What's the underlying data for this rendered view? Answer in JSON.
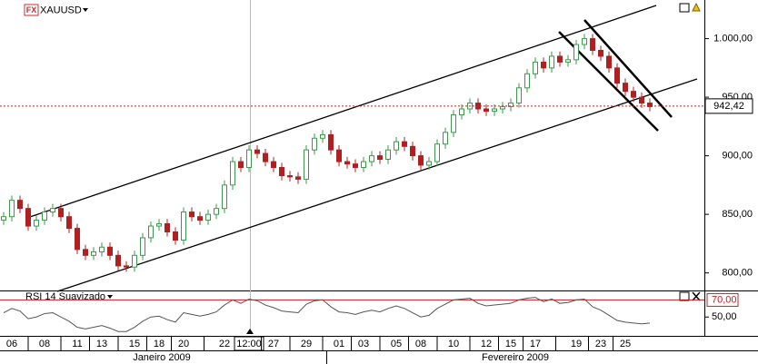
{
  "chart_data": [
    {
      "type": "candlestick",
      "badge": "FX",
      "title": "XAUUSD",
      "up_color": "#3a9a4a",
      "down_color": "#b02020",
      "categories": [
        null,
        "06",
        null,
        null,
        null,
        "08",
        null,
        null,
        null,
        "11",
        null,
        null,
        "13",
        null,
        null,
        null,
        "15",
        null,
        null,
        "18",
        null,
        null,
        "20",
        null,
        null,
        null,
        null,
        "22",
        null,
        null,
        "12:00",
        null,
        null,
        "27",
        null,
        null,
        null,
        "29",
        null,
        null,
        null,
        "01",
        null,
        null,
        "03",
        null,
        null,
        null,
        "05",
        null,
        null,
        "08",
        null,
        null,
        null,
        "10",
        null,
        null,
        null,
        "12",
        null,
        null,
        "15",
        null,
        null,
        "17",
        null,
        null,
        null,
        null,
        "19",
        null,
        null,
        "23",
        null,
        null,
        "25",
        null,
        null,
        null
      ],
      "x_groups": [
        "Janeiro 2009",
        "Fevereiro 2009"
      ],
      "open": [
        845,
        848,
        862,
        855,
        840,
        845,
        852,
        855,
        848,
        838,
        820,
        815,
        818,
        822,
        815,
        806,
        805,
        815,
        830,
        840,
        842,
        835,
        828,
        852,
        848,
        845,
        850,
        855,
        875,
        895,
        890,
        905,
        902,
        895,
        890,
        883,
        882,
        880,
        905,
        915,
        918,
        905,
        895,
        893,
        890,
        895,
        900,
        897,
        905,
        912,
        908,
        900,
        892,
        895,
        910,
        920,
        935,
        940,
        945,
        940,
        938,
        940,
        942,
        945,
        958,
        970,
        980,
        975,
        985,
        980,
        982,
        995,
        1000,
        990,
        985,
        975,
        962,
        955,
        950,
        945
      ],
      "high": [
        852,
        866,
        866,
        859,
        849,
        856,
        859,
        859,
        852,
        842,
        824,
        822,
        826,
        826,
        819,
        810,
        819,
        834,
        844,
        846,
        846,
        839,
        856,
        856,
        852,
        854,
        859,
        879,
        899,
        899,
        909,
        909,
        906,
        899,
        894,
        887,
        886,
        909,
        919,
        922,
        922,
        909,
        899,
        897,
        899,
        904,
        904,
        909,
        916,
        916,
        912,
        904,
        899,
        914,
        924,
        939,
        944,
        949,
        949,
        944,
        944,
        946,
        949,
        962,
        974,
        984,
        984,
        989,
        989,
        986,
        999,
        1004,
        1004,
        994,
        989,
        979,
        966,
        959,
        954,
        949
      ],
      "low": [
        841,
        844,
        851,
        836,
        836,
        841,
        848,
        844,
        834,
        816,
        811,
        811,
        814,
        811,
        802,
        801,
        801,
        811,
        826,
        836,
        831,
        824,
        824,
        844,
        841,
        841,
        846,
        851,
        871,
        886,
        886,
        898,
        891,
        886,
        879,
        878,
        876,
        876,
        901,
        911,
        901,
        891,
        889,
        886,
        886,
        891,
        893,
        893,
        901,
        904,
        896,
        888,
        888,
        891,
        906,
        916,
        931,
        936,
        936,
        934,
        934,
        936,
        938,
        941,
        954,
        966,
        971,
        971,
        976,
        976,
        978,
        991,
        986,
        981,
        971,
        958,
        951,
        946,
        941,
        938
      ],
      "close": [
        848,
        862,
        855,
        840,
        845,
        852,
        855,
        848,
        838,
        820,
        815,
        818,
        822,
        815,
        806,
        805,
        815,
        830,
        840,
        842,
        835,
        828,
        852,
        848,
        845,
        850,
        855,
        875,
        895,
        890,
        905,
        902,
        895,
        890,
        883,
        882,
        880,
        905,
        915,
        918,
        905,
        895,
        893,
        890,
        895,
        900,
        897,
        905,
        912,
        908,
        900,
        892,
        895,
        910,
        920,
        935,
        940,
        945,
        940,
        938,
        940,
        942,
        945,
        958,
        970,
        980,
        975,
        985,
        980,
        982,
        995,
        1000,
        990,
        985,
        975,
        962,
        955,
        950,
        945,
        942
      ],
      "ylim": [
        785,
        1033
      ],
      "yticks": [
        {
          "value": 800,
          "label": "800,00"
        },
        {
          "value": 850,
          "label": "850,00"
        },
        {
          "value": 900,
          "label": "900,00"
        },
        {
          "value": 950,
          "label": "950,00"
        },
        {
          "value": 1000,
          "label": "1.000,00"
        }
      ],
      "last_price": {
        "value": 942.42,
        "label": "942,42"
      }
    },
    {
      "type": "line",
      "title": "RSI 14 Suavizado",
      "color": "#555555",
      "values": [
        55,
        60,
        57,
        48,
        50,
        54,
        55,
        50,
        45,
        38,
        36,
        38,
        40,
        37,
        33,
        33,
        38,
        45,
        50,
        51,
        47,
        44,
        55,
        53,
        51,
        53,
        56,
        64,
        70,
        66,
        71,
        69,
        64,
        61,
        57,
        56,
        55,
        65,
        69,
        70,
        62,
        56,
        55,
        53,
        56,
        58,
        56,
        60,
        63,
        60,
        55,
        50,
        52,
        60,
        65,
        70,
        71,
        72,
        66,
        63,
        64,
        65,
        66,
        70,
        72,
        73,
        68,
        71,
        66,
        67,
        70,
        71,
        62,
        58,
        52,
        46,
        44,
        43,
        42,
        43
      ],
      "ylim": [
        29,
        80
      ],
      "yticks": [
        {
          "value": 50,
          "label": "50,00"
        },
        {
          "value": 70,
          "label": "70,00"
        }
      ]
    }
  ]
}
